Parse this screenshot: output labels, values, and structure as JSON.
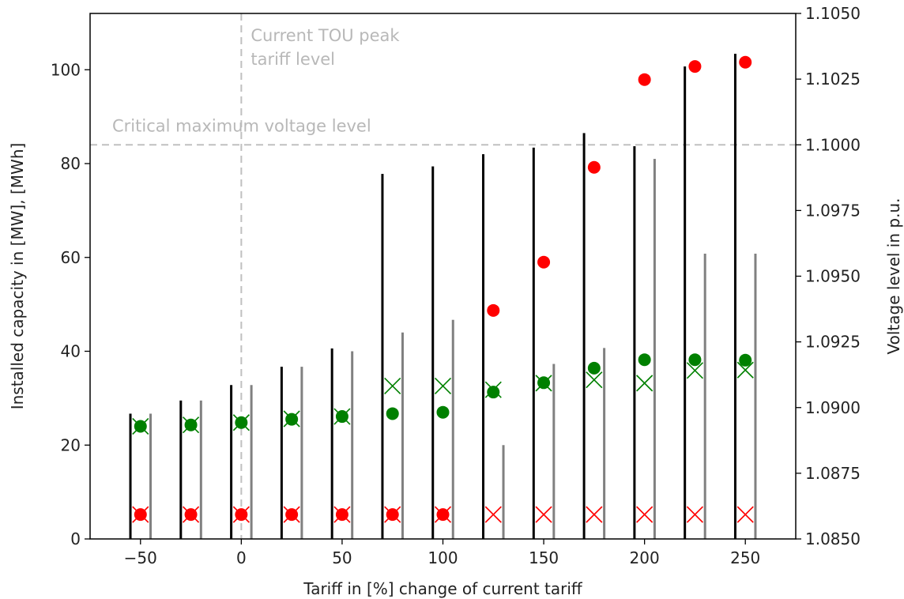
{
  "chart_data": {
    "type": "bar",
    "title": "",
    "xlabel": "Tariff in [%] change of current tariff",
    "ylabel": "Installed capacity in [MW], [MWh]",
    "y2label": "Voltage level in p.u.",
    "xlim": [
      -75,
      275
    ],
    "ylim": [
      0,
      112
    ],
    "y2lim": [
      1.085,
      1.105
    ],
    "xticks": [
      -50,
      0,
      50,
      100,
      150,
      200,
      250
    ],
    "xtick_labels": [
      "−50",
      "0",
      "50",
      "100",
      "150",
      "200",
      "250"
    ],
    "yticks": [
      0,
      20,
      40,
      60,
      80,
      100
    ],
    "yticks_labels": [
      "0",
      "20",
      "40",
      "60",
      "80",
      "100"
    ],
    "y2ticks": [
      1.085,
      1.0875,
      1.09,
      1.0925,
      1.095,
      1.0975,
      1.1,
      1.1025,
      1.105
    ],
    "y2tick_labels": [
      "1.0850",
      "1.0875",
      "1.0900",
      "1.0925",
      "1.0950",
      "1.0975",
      "1.1000",
      "1.1025",
      "1.1050"
    ],
    "grid": false,
    "x": [
      -50,
      -25,
      0,
      25,
      50,
      75,
      100,
      125,
      150,
      175,
      200,
      225,
      250
    ],
    "series": [
      {
        "kind": "bar",
        "axis": "left",
        "offset": -5,
        "color": "#000000",
        "values": [
          26.7,
          29.5,
          32.8,
          36.7,
          40.6,
          77.8,
          79.4,
          82.0,
          83.4,
          86.5,
          83.7,
          100.7,
          103.4
        ]
      },
      {
        "kind": "bar",
        "axis": "left",
        "offset": 5,
        "color": "#808080",
        "values": [
          26.7,
          29.5,
          32.8,
          36.7,
          40.0,
          44.0,
          46.7,
          20.0,
          37.3,
          40.7,
          81.0,
          60.8,
          60.8
        ]
      },
      {
        "kind": "scatter",
        "axis": "left",
        "marker": "x",
        "color": "#008000",
        "values": [
          24.0,
          24.3,
          24.8,
          25.6,
          26.1,
          32.6,
          32.6,
          31.8,
          33.2,
          33.9,
          33.2,
          35.9,
          36.0
        ]
      },
      {
        "kind": "scatter",
        "axis": "left",
        "marker": "o",
        "color": "#008000",
        "values": [
          24.0,
          24.3,
          24.8,
          25.5,
          26.1,
          26.7,
          27.0,
          31.3,
          33.3,
          36.4,
          38.2,
          38.2,
          38.1
        ]
      },
      {
        "kind": "scatter",
        "axis": "left",
        "marker": "x",
        "color": "#ff0000",
        "values": [
          5.2,
          5.2,
          5.2,
          5.2,
          5.2,
          5.2,
          5.2,
          5.2,
          5.2,
          5.2,
          5.2,
          5.2,
          5.2
        ]
      },
      {
        "kind": "scatter",
        "axis": "left",
        "marker": "o",
        "color": "#ff0000",
        "values": [
          5.2,
          5.2,
          5.2,
          5.2,
          5.2,
          5.2,
          5.2,
          48.7,
          59.0,
          79.2,
          97.9,
          100.7,
          101.6
        ]
      }
    ],
    "reference_lines": [
      {
        "orientation": "vertical",
        "axis": "x",
        "value": 0,
        "label_lines": [
          "Current TOU peak",
          " tariff level"
        ]
      },
      {
        "orientation": "horizontal",
        "axis": "right",
        "value": 1.1,
        "label": "Critical maximum voltage level"
      }
    ],
    "colors": {
      "reference_line": "#c0c0c0",
      "annotation": "#b8b8b8",
      "axis": "#000000",
      "text": "#222222"
    }
  }
}
